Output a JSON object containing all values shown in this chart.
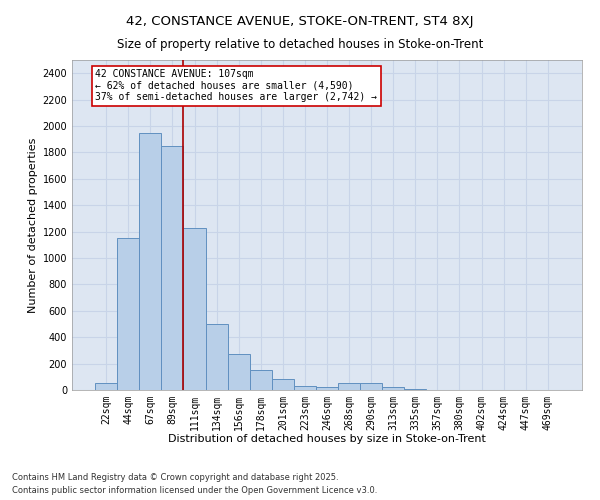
{
  "title_line1": "42, CONSTANCE AVENUE, STOKE-ON-TRENT, ST4 8XJ",
  "title_line2": "Size of property relative to detached houses in Stoke-on-Trent",
  "xlabel": "Distribution of detached houses by size in Stoke-on-Trent",
  "ylabel": "Number of detached properties",
  "categories": [
    "22sqm",
    "44sqm",
    "67sqm",
    "89sqm",
    "111sqm",
    "134sqm",
    "156sqm",
    "178sqm",
    "201sqm",
    "223sqm",
    "246sqm",
    "268sqm",
    "290sqm",
    "313sqm",
    "335sqm",
    "357sqm",
    "380sqm",
    "402sqm",
    "424sqm",
    "447sqm",
    "469sqm"
  ],
  "values": [
    50,
    1150,
    1950,
    1850,
    1230,
    500,
    270,
    155,
    85,
    30,
    20,
    55,
    50,
    25,
    8,
    3,
    3,
    1,
    1,
    1,
    1
  ],
  "bar_color": "#b8cfe8",
  "bar_edge_color": "#6090c0",
  "background_color": "#dde6f2",
  "grid_color": "#c8d4e8",
  "vline_color": "#aa0000",
  "annotation_text": "42 CONSTANCE AVENUE: 107sqm\n← 62% of detached houses are smaller (4,590)\n37% of semi-detached houses are larger (2,742) →",
  "annotation_box_color": "#cc0000",
  "ylim": [
    0,
    2500
  ],
  "yticks": [
    0,
    200,
    400,
    600,
    800,
    1000,
    1200,
    1400,
    1600,
    1800,
    2000,
    2200,
    2400
  ],
  "footer_line1": "Contains HM Land Registry data © Crown copyright and database right 2025.",
  "footer_line2": "Contains public sector information licensed under the Open Government Licence v3.0.",
  "title_fontsize": 9.5,
  "subtitle_fontsize": 8.5,
  "axis_label_fontsize": 8,
  "tick_fontsize": 7,
  "annotation_fontsize": 7,
  "footer_fontsize": 6
}
